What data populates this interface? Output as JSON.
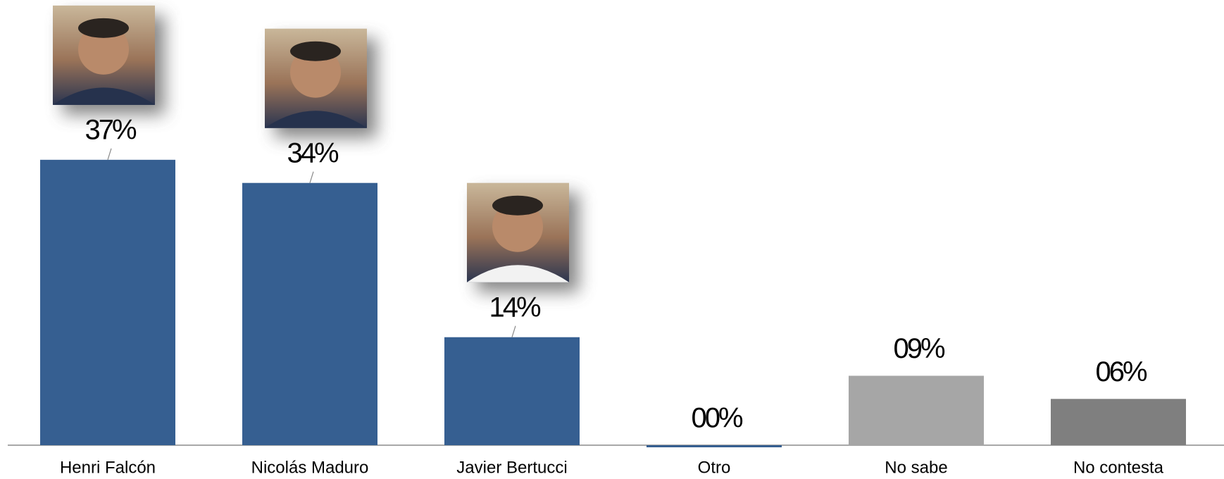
{
  "chart_data": {
    "type": "bar",
    "categories": [
      "Henri Falcón",
      "Nicolás Maduro",
      "Javier Bertucci",
      "Otro",
      "No sabe",
      "No contesta"
    ],
    "values": [
      37,
      34,
      14,
      0,
      9,
      6
    ],
    "value_labels": [
      "37%",
      "34%",
      "14%",
      "00%",
      "09%",
      "06%"
    ],
    "colors": [
      "#365f91",
      "#365f91",
      "#365f91",
      "#365f91",
      "#a6a6a6",
      "#7f7f7f"
    ]
  }
}
